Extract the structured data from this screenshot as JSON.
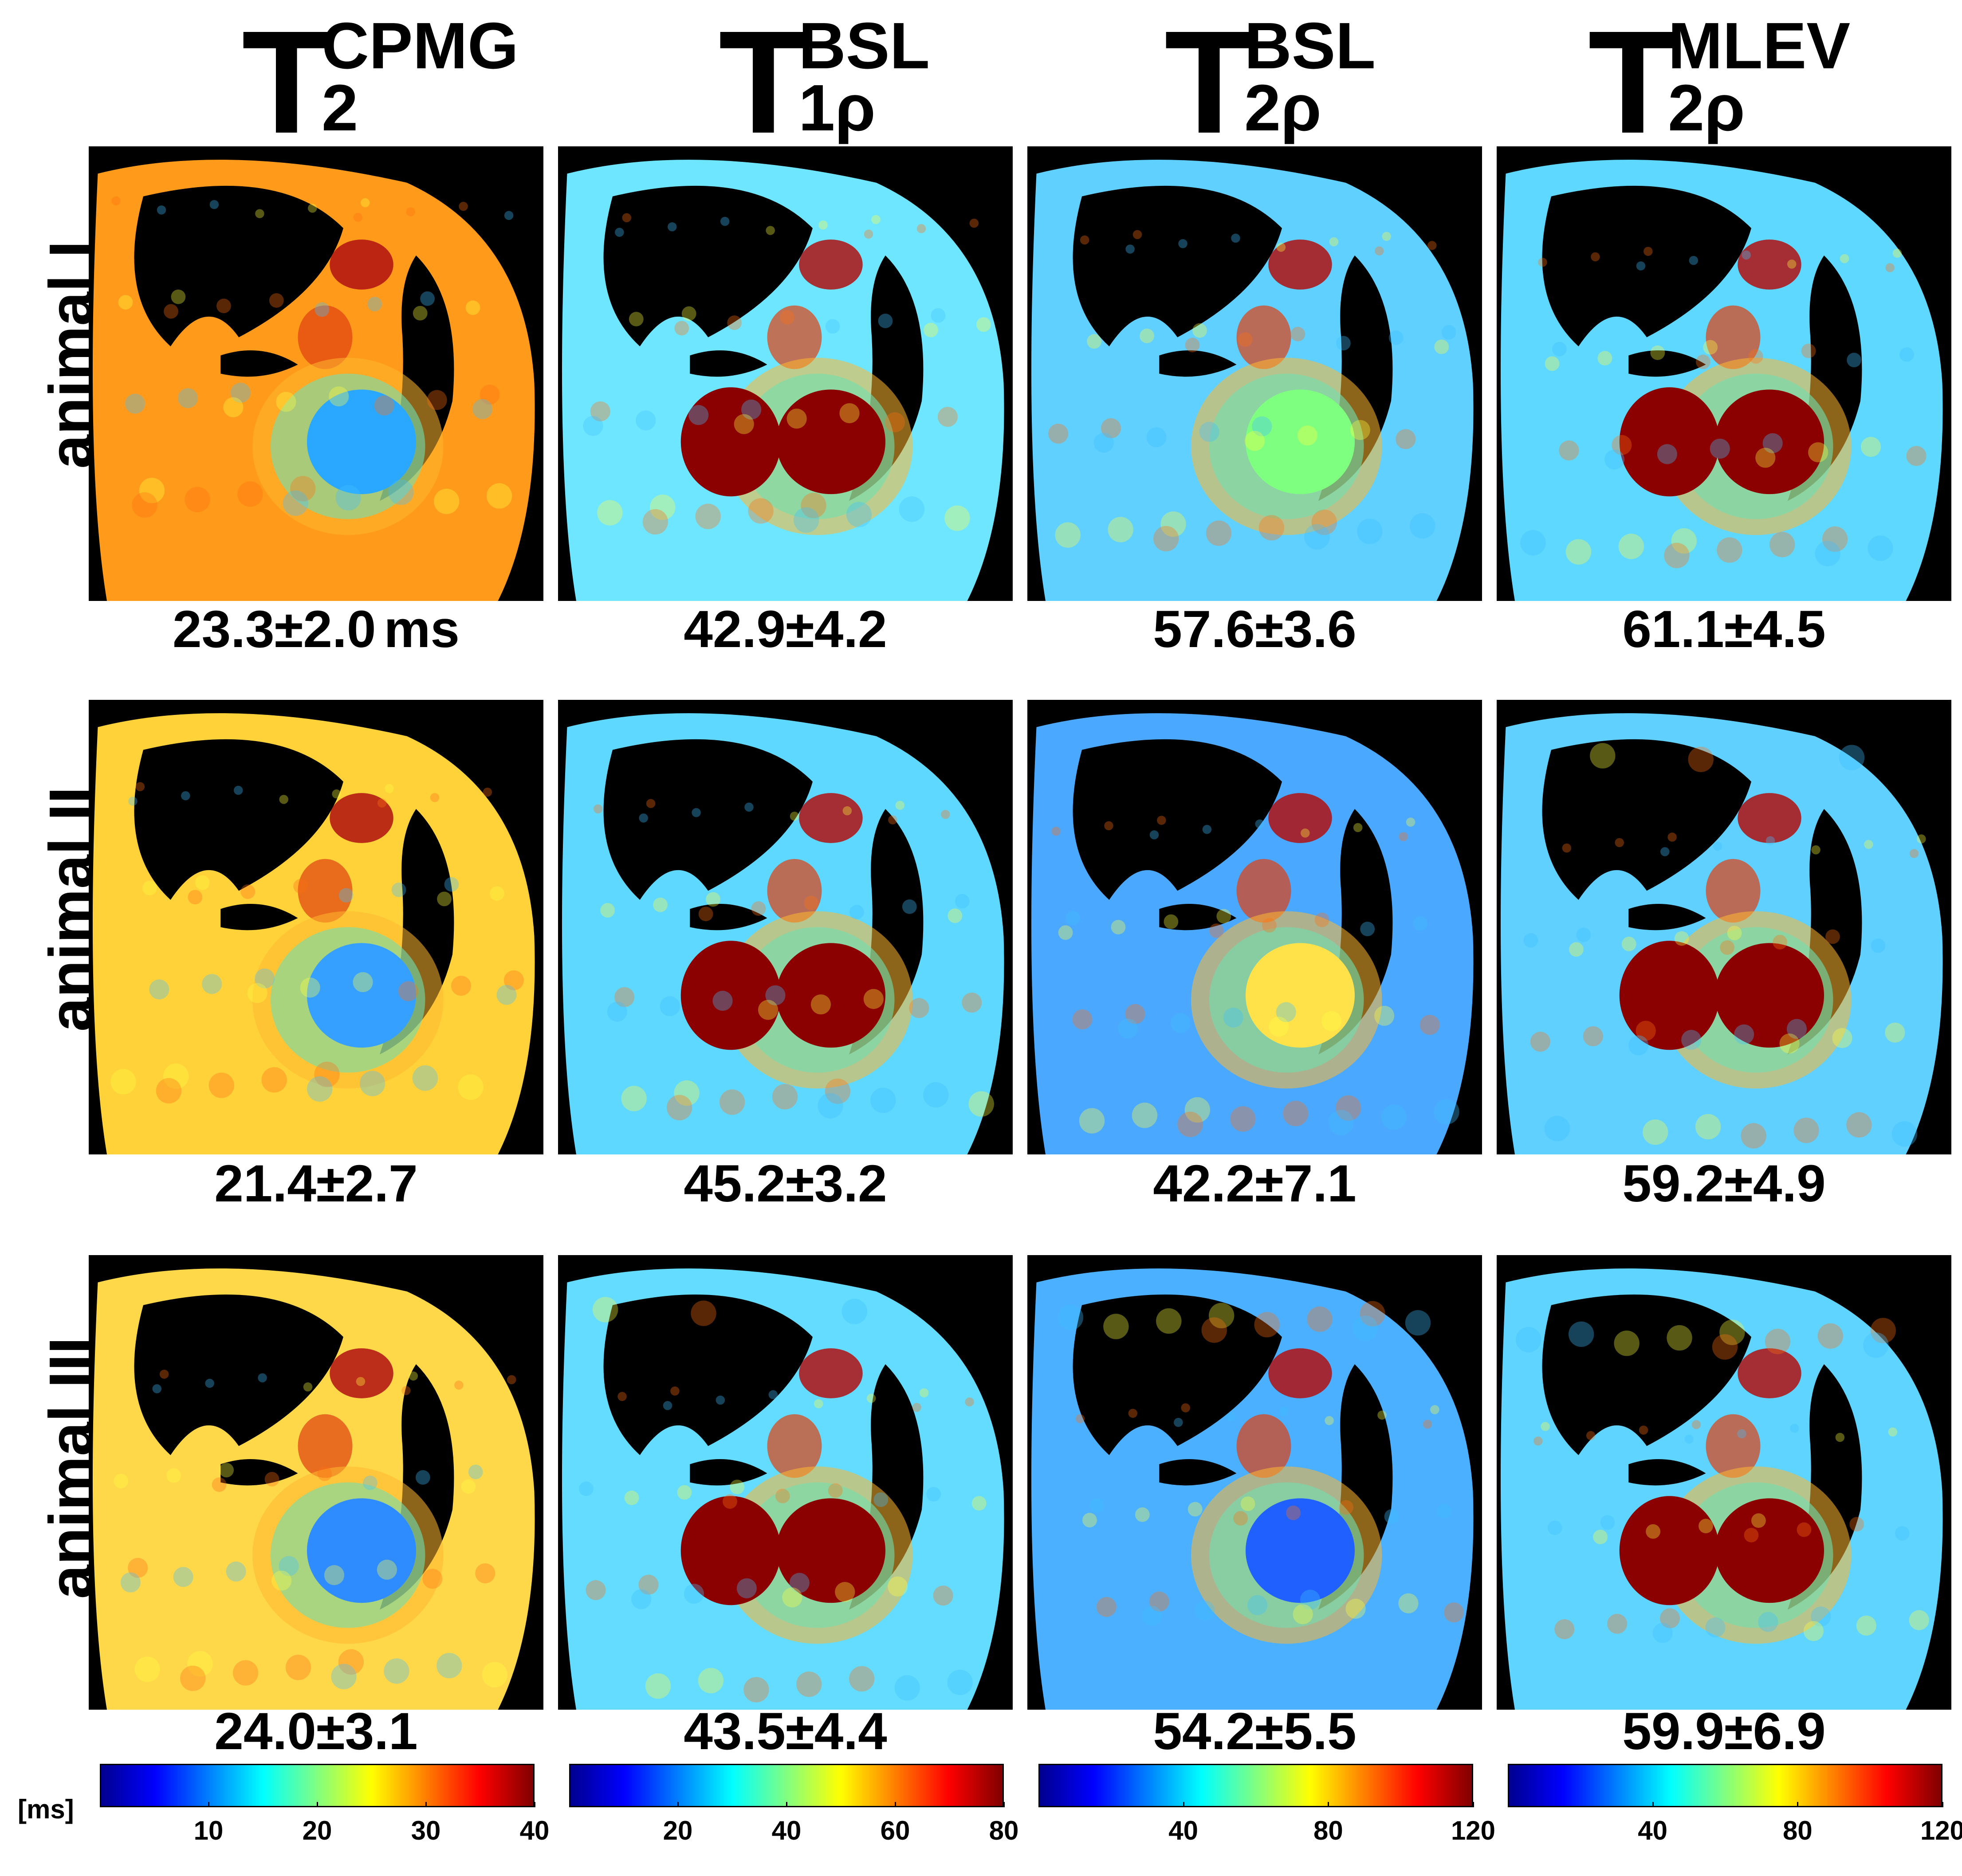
{
  "columns": [
    {
      "base": "T",
      "sup": "CPMG",
      "sub": "2"
    },
    {
      "base": "T",
      "sup": "BSL",
      "sub": "1ρ"
    },
    {
      "base": "T",
      "sup": "BSL",
      "sub": "2ρ"
    },
    {
      "base": "T",
      "sup": "MLEV",
      "sub": "2ρ"
    }
  ],
  "rows": [
    {
      "label": "animal I",
      "stats": [
        "23.3±2.0",
        "42.9±4.2",
        "57.6±3.6",
        "61.1±4.5"
      ]
    },
    {
      "label": "animal II",
      "stats": [
        "21.4±2.7",
        "45.2±3.2",
        "42.2±7.1",
        "59.2±4.9"
      ]
    },
    {
      "label": "animal III",
      "stats": [
        "24.0±3.1",
        "43.5±4.4",
        "54.2±5.5",
        "59.9±6.9"
      ]
    }
  ],
  "unit_after_first_stat": "ms",
  "colorbar_unit": "[ms]",
  "colorbars": [
    {
      "ticks": [
        "10",
        "20",
        "30",
        "40"
      ],
      "min": 0,
      "max": 40,
      "tick_values": [
        10,
        20,
        30,
        40
      ]
    },
    {
      "ticks": [
        "20",
        "40",
        "60",
        "80"
      ],
      "min": 0,
      "max": 80,
      "tick_values": [
        20,
        40,
        60,
        80
      ]
    },
    {
      "ticks": [
        "40",
        "80",
        "120"
      ],
      "min": 0,
      "max": 120,
      "tick_values": [
        40,
        80,
        120
      ]
    },
    {
      "ticks": [
        "40",
        "80",
        "120"
      ],
      "min": 0,
      "max": 120,
      "tick_values": [
        40,
        80,
        120
      ]
    }
  ],
  "colormap": [
    "#00008f",
    "#0000ff",
    "#0080ff",
    "#00ffff",
    "#80ff80",
    "#ffff00",
    "#ff8000",
    "#ff0000",
    "#800000"
  ],
  "panel_tints": [
    [
      "#ff9a1a",
      "#6fe6ff",
      "#5fd0ff",
      "#5fd8ff"
    ],
    [
      "#ffd23a",
      "#5fd8ff",
      "#4aa8ff",
      "#5fd0ff"
    ],
    [
      "#ffd84a",
      "#63dcff",
      "#4bb0ff",
      "#5fd4ff"
    ]
  ],
  "panel_heart": [
    [
      "#2aa8ff",
      "#8b0000",
      "#7fff7f",
      "#8b0000"
    ],
    [
      "#35a0ff",
      "#8b0000",
      "#ffe24a",
      "#8b0000"
    ],
    [
      "#2f8cff",
      "#8b0000",
      "#1f60ff",
      "#8b0000"
    ]
  ]
}
